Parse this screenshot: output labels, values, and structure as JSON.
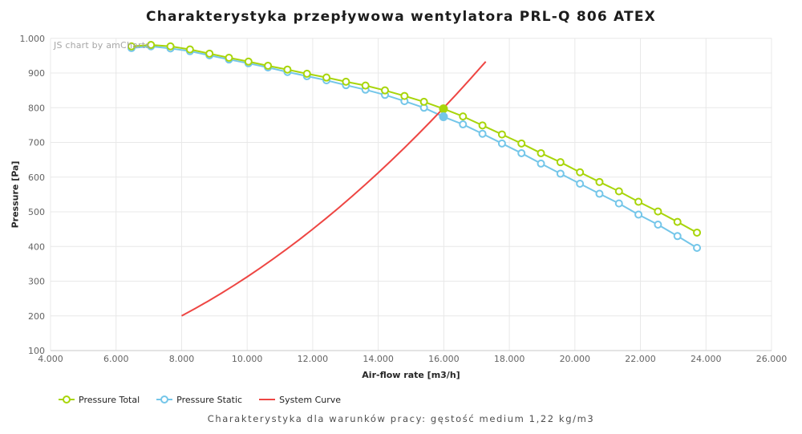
{
  "header": {
    "title": "Charakterystyka przepływowa wentylatora PRL-Q 806 ATEX"
  },
  "branding": {
    "label": "JS chart by amCharts"
  },
  "axes": {
    "x": {
      "title": "Air-flow rate [m3/h]",
      "ticks": [
        {
          "value": 4000,
          "label": "4.000"
        },
        {
          "value": 6000,
          "label": "6.000"
        },
        {
          "value": 8000,
          "label": "8.000"
        },
        {
          "value": 10000,
          "label": "10.000"
        },
        {
          "value": 12000,
          "label": "12.000"
        },
        {
          "value": 14000,
          "label": "14.000"
        },
        {
          "value": 16000,
          "label": "16.000"
        },
        {
          "value": 18000,
          "label": "18.000"
        },
        {
          "value": 20000,
          "label": "20.000"
        },
        {
          "value": 22000,
          "label": "22.000"
        },
        {
          "value": 24000,
          "label": "24.000"
        },
        {
          "value": 26000,
          "label": "26.000"
        }
      ]
    },
    "y": {
      "title": "Pressure [Pa]",
      "ticks": [
        {
          "value": 100,
          "label": "100"
        },
        {
          "value": 200,
          "label": "200"
        },
        {
          "value": 300,
          "label": "300"
        },
        {
          "value": 400,
          "label": "400"
        },
        {
          "value": 500,
          "label": "500"
        },
        {
          "value": 600,
          "label": "600"
        },
        {
          "value": 700,
          "label": "700"
        },
        {
          "value": 800,
          "label": "800"
        },
        {
          "value": 900,
          "label": "900"
        },
        {
          "value": 1000,
          "label": "1.000"
        }
      ]
    }
  },
  "legend": [
    {
      "name": "Pressure Total",
      "color": "#a8d50a",
      "marker": "line-circle"
    },
    {
      "name": "Pressure Static",
      "color": "#74c6e9",
      "marker": "line-circle"
    },
    {
      "name": "System Curve",
      "color": "#ee4643",
      "marker": "line"
    }
  ],
  "caption": "Charakterystyka dla warunków pracy: gęstość medium 1,22 kg/m3",
  "colors": {
    "grid": "#e8e8e8",
    "axis_line": "#c9c9c9",
    "tick_text": "#646464",
    "pressure_total": "#a8d50a",
    "pressure_static": "#74c6e9",
    "system_curve": "#ee4643"
  },
  "chart_data": {
    "type": "line",
    "title": "Charakterystyka przepływowa wentylatora PRL-Q 806 ATEX",
    "xlabel": "Air-flow rate [m3/h]",
    "ylabel": "Pressure [Pa]",
    "xlim": [
      4000,
      26000
    ],
    "ylim": [
      100,
      1000
    ],
    "grid": true,
    "legend_position": "bottom-left",
    "series": [
      {
        "name": "Pressure Total",
        "color": "#a8d50a",
        "marker": "open-circle",
        "x": [
          6470,
          7065,
          7660,
          8255,
          8850,
          9445,
          10040,
          10635,
          11230,
          11825,
          12420,
          13015,
          13610,
          14205,
          14800,
          15395,
          15990,
          16585,
          17180,
          17775,
          18370,
          18965,
          19560,
          20155,
          20750,
          21345,
          21940,
          22535,
          23130,
          23725
        ],
        "y": [
          977,
          981,
          977,
          968,
          956,
          944,
          933,
          921,
          910,
          898,
          887,
          875,
          864,
          850,
          834,
          817,
          797,
          775,
          749,
          723,
          697,
          669,
          643,
          614,
          586,
          559,
          529,
          501,
          471,
          440
        ]
      },
      {
        "name": "Pressure Static",
        "color": "#74c6e9",
        "marker": "open-circle",
        "x": [
          6470,
          7065,
          7660,
          8255,
          8850,
          9445,
          10040,
          10635,
          11230,
          11825,
          12420,
          13015,
          13610,
          14205,
          14800,
          15395,
          15990,
          16585,
          17180,
          17775,
          18370,
          18965,
          19560,
          20155,
          20750,
          21345,
          21940,
          22535,
          23130,
          23725
        ],
        "y": [
          972,
          977,
          971,
          963,
          951,
          939,
          928,
          916,
          903,
          891,
          879,
          865,
          852,
          837,
          819,
          800,
          774,
          752,
          725,
          697,
          669,
          639,
          610,
          581,
          552,
          524,
          492,
          463,
          430,
          396
        ]
      },
      {
        "name": "System Curve",
        "color": "#ee4643",
        "marker": "none",
        "x": [
          8000,
          8400,
          8800,
          9200,
          9600,
          10000,
          10400,
          10800,
          11200,
          11600,
          12000,
          12400,
          12800,
          13200,
          13600,
          14000,
          14400,
          14800,
          15200,
          15600,
          16000,
          16400,
          16800,
          17200,
          17280
        ],
        "y": [
          200,
          220.5,
          242,
          264.5,
          288,
          312.5,
          338,
          364.5,
          392,
          420.5,
          450,
          480.5,
          512,
          544.5,
          578,
          612.5,
          648,
          684.5,
          722,
          760.5,
          800,
          840.5,
          882,
          924.5,
          933
        ]
      }
    ],
    "operating_points": [
      {
        "series": 0,
        "flow": 15990,
        "pressure": 797
      },
      {
        "series": 1,
        "flow": 15990,
        "pressure": 774
      }
    ]
  }
}
